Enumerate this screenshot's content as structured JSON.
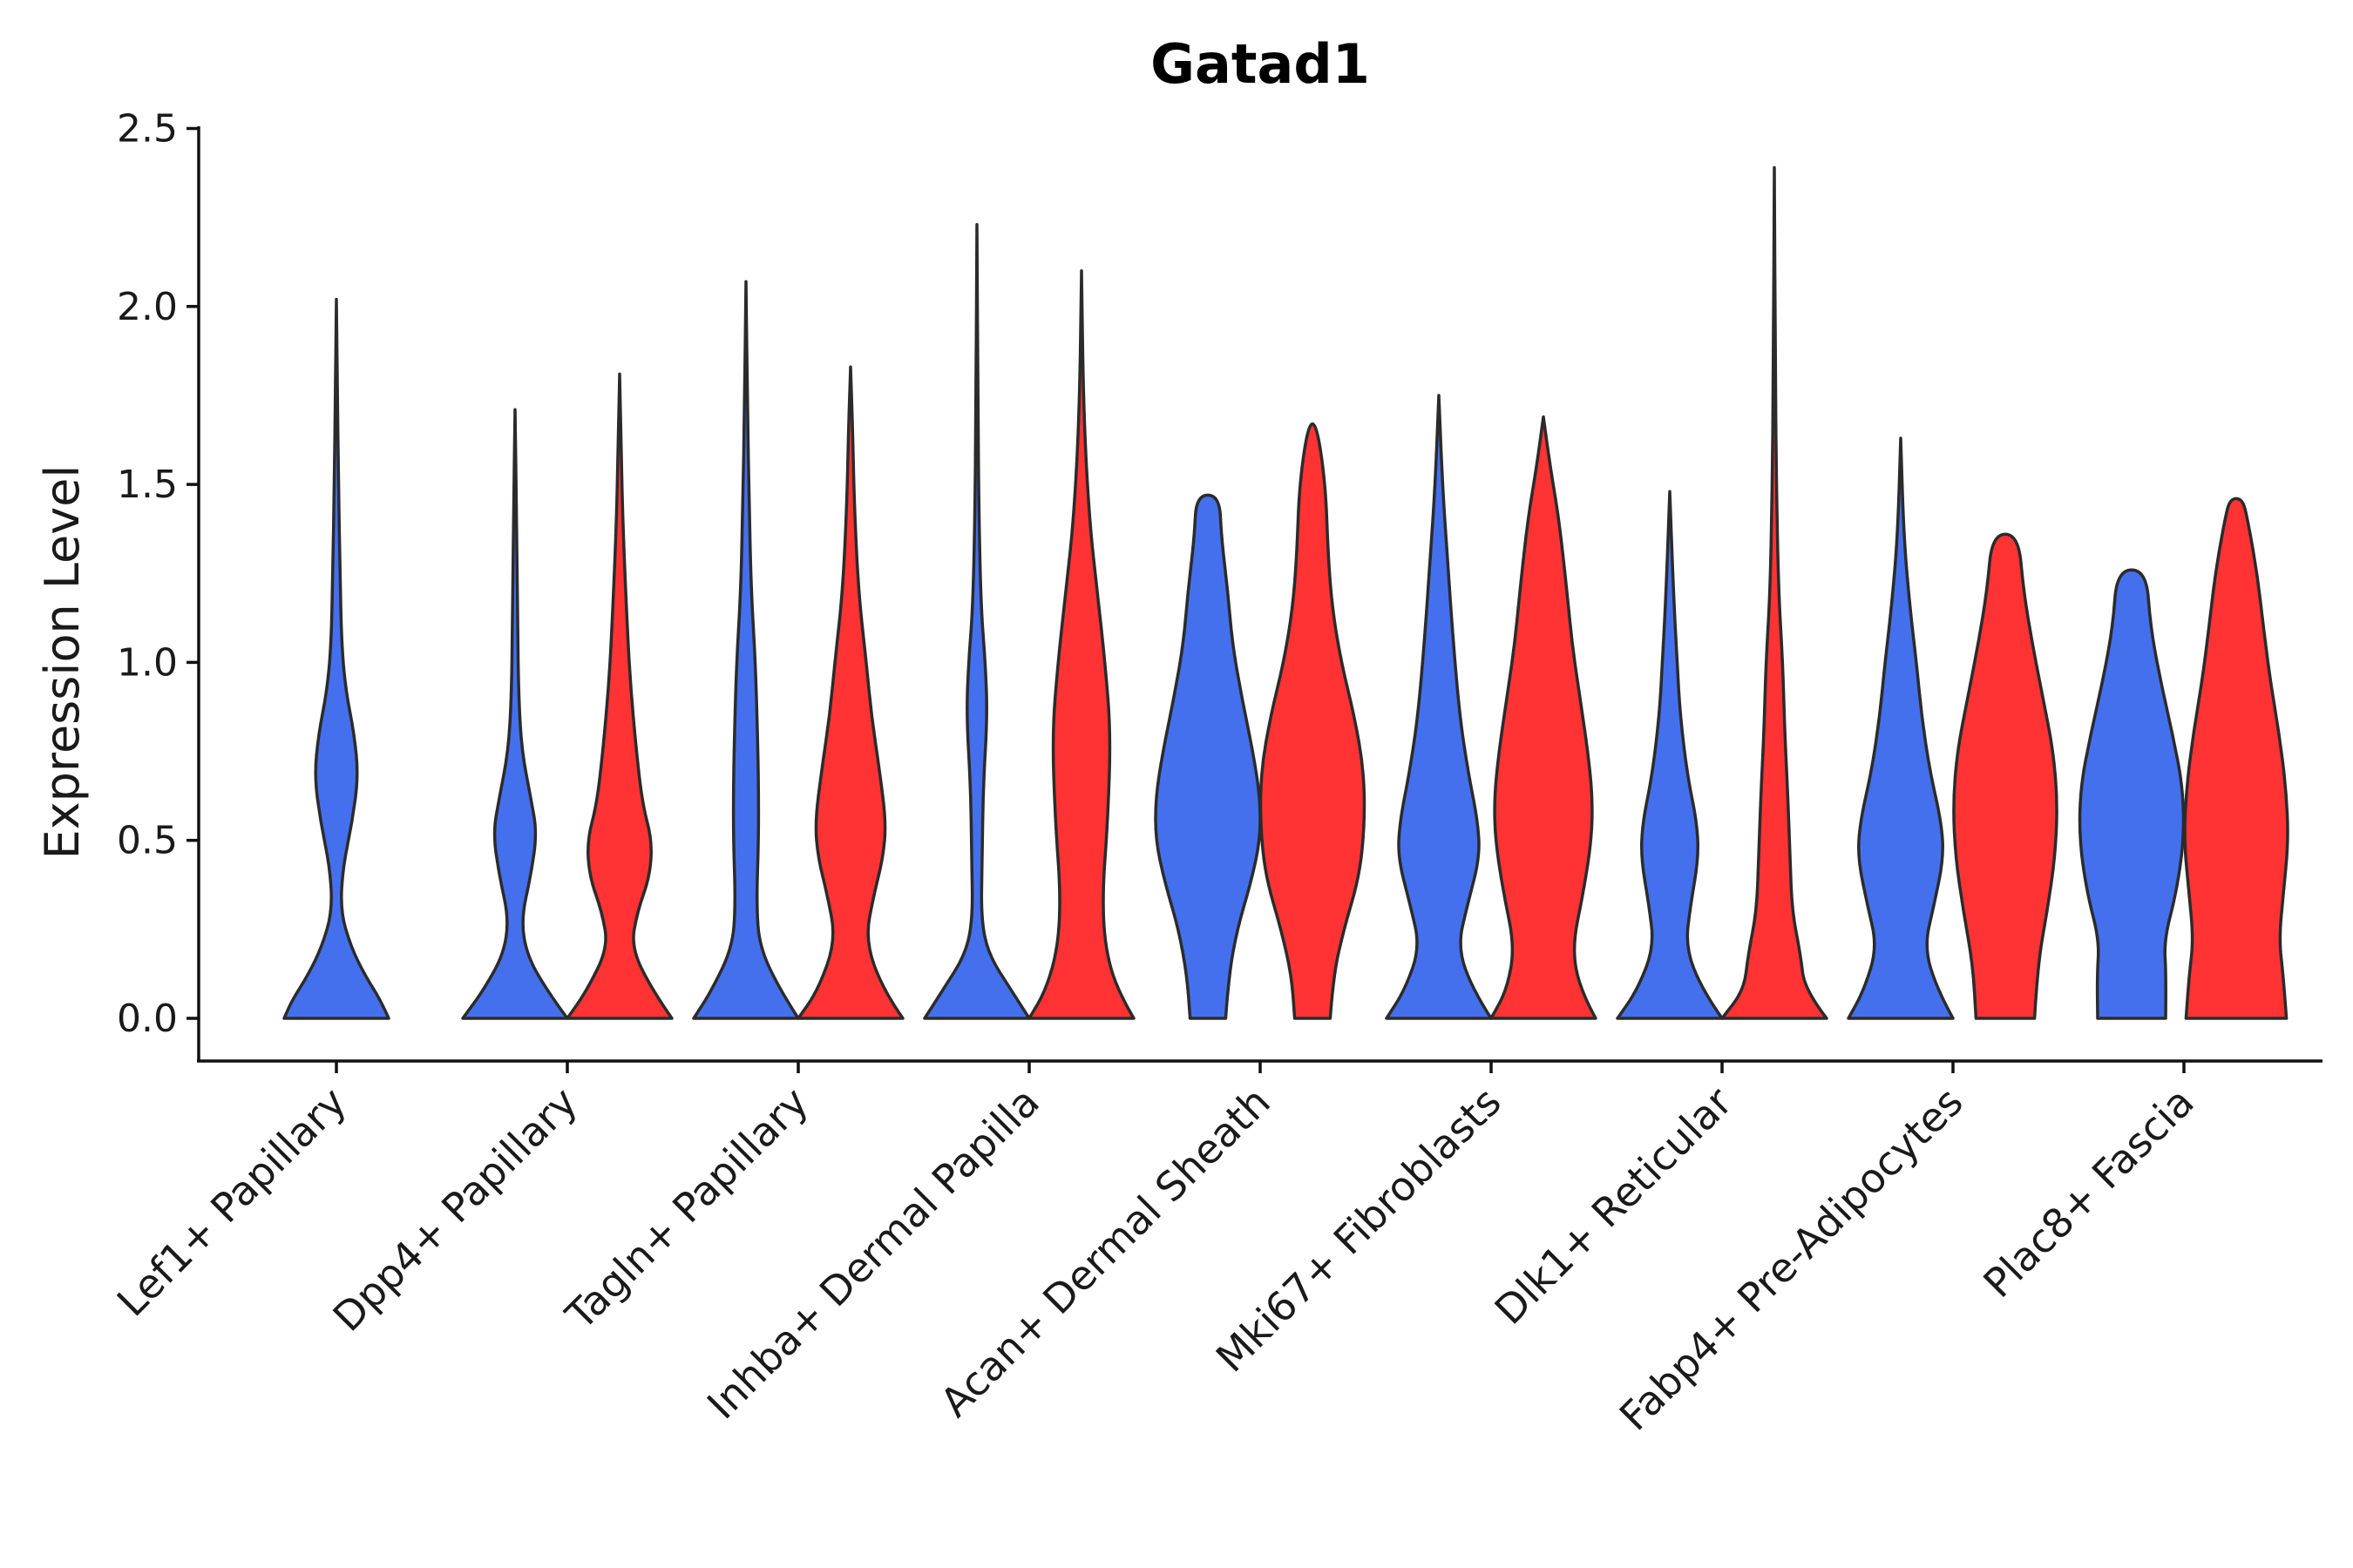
{
  "chart_data": {
    "type": "violin",
    "title": "Gatad1",
    "xlabel": "",
    "ylabel": "Expression Level",
    "ylim": [
      -0.12,
      2.52
    ],
    "yticks": [
      "0.0",
      "0.5",
      "1.0",
      "1.5",
      "2.0",
      "2.5"
    ],
    "ytick_values": [
      0,
      0.5,
      1.0,
      1.5,
      2.0,
      2.5
    ],
    "grid": false,
    "series_colors": {
      "group_1": "#4470ee",
      "group_2": "#ff3333"
    },
    "categories": [
      "Lef1+ Papillary",
      "Dpp4+ Papillary",
      "Tagln+ Papillary",
      "Inhba+ Dermal Papilla",
      "Acan+ Dermal Sheath",
      "Mki67+ Fibroblasts",
      "Dlk1+ Reticular",
      "Fabp4+ Pre-Adipocytes",
      "Plac8+ Fascia"
    ],
    "violins": [
      {
        "category": "Lef1+ Papillary",
        "group": "group_1",
        "min": 0.0,
        "max": 2.02,
        "profile": [
          [
            0.0,
            1.0
          ],
          [
            0.05,
            0.85
          ],
          [
            0.12,
            0.55
          ],
          [
            0.2,
            0.28
          ],
          [
            0.3,
            0.08
          ],
          [
            0.42,
            0.12
          ],
          [
            0.55,
            0.3
          ],
          [
            0.68,
            0.42
          ],
          [
            0.8,
            0.34
          ],
          [
            0.92,
            0.18
          ],
          [
            1.05,
            0.1
          ],
          [
            1.25,
            0.07
          ],
          [
            1.5,
            0.04
          ],
          [
            1.75,
            0.02
          ],
          [
            2.02,
            0.0
          ]
        ]
      },
      {
        "category": "Dpp4+ Papillary",
        "group": "group_1",
        "min": 0.0,
        "max": 1.71,
        "profile": [
          [
            0.0,
            1.0
          ],
          [
            0.08,
            0.6
          ],
          [
            0.18,
            0.22
          ],
          [
            0.28,
            0.12
          ],
          [
            0.4,
            0.3
          ],
          [
            0.52,
            0.42
          ],
          [
            0.62,
            0.3
          ],
          [
            0.75,
            0.13
          ],
          [
            0.9,
            0.07
          ],
          [
            1.1,
            0.05
          ],
          [
            1.4,
            0.03
          ],
          [
            1.71,
            0.0
          ]
        ]
      },
      {
        "category": "Dpp4+ Papillary",
        "group": "group_2",
        "min": 0.0,
        "max": 1.81,
        "profile": [
          [
            0.0,
            1.0
          ],
          [
            0.08,
            0.62
          ],
          [
            0.2,
            0.22
          ],
          [
            0.3,
            0.34
          ],
          [
            0.4,
            0.58
          ],
          [
            0.5,
            0.62
          ],
          [
            0.6,
            0.44
          ],
          [
            0.75,
            0.32
          ],
          [
            0.95,
            0.2
          ],
          [
            1.15,
            0.13
          ],
          [
            1.4,
            0.06
          ],
          [
            1.6,
            0.03
          ],
          [
            1.81,
            0.0
          ]
        ]
      },
      {
        "category": "Tagln+ Papillary",
        "group": "group_1",
        "min": 0.0,
        "max": 2.07,
        "profile": [
          [
            0.0,
            1.0
          ],
          [
            0.08,
            0.65
          ],
          [
            0.2,
            0.26
          ],
          [
            0.32,
            0.2
          ],
          [
            0.5,
            0.24
          ],
          [
            0.65,
            0.24
          ],
          [
            0.8,
            0.22
          ],
          [
            1.0,
            0.18
          ],
          [
            1.2,
            0.1
          ],
          [
            1.45,
            0.06
          ],
          [
            1.7,
            0.03
          ],
          [
            2.07,
            0.0
          ]
        ]
      },
      {
        "category": "Tagln+ Papillary",
        "group": "group_2",
        "min": 0.0,
        "max": 1.83,
        "profile": [
          [
            0.0,
            1.0
          ],
          [
            0.08,
            0.62
          ],
          [
            0.22,
            0.28
          ],
          [
            0.35,
            0.45
          ],
          [
            0.45,
            0.62
          ],
          [
            0.55,
            0.68
          ],
          [
            0.7,
            0.55
          ],
          [
            0.85,
            0.4
          ],
          [
            1.0,
            0.3
          ],
          [
            1.2,
            0.15
          ],
          [
            1.45,
            0.07
          ],
          [
            1.65,
            0.04
          ],
          [
            1.83,
            0.0
          ]
        ]
      },
      {
        "category": "Inhba+ Dermal Papilla",
        "group": "group_1",
        "min": 0.0,
        "max": 2.23,
        "profile": [
          [
            0.0,
            1.0
          ],
          [
            0.08,
            0.65
          ],
          [
            0.18,
            0.22
          ],
          [
            0.28,
            0.08
          ],
          [
            0.45,
            0.1
          ],
          [
            0.65,
            0.12
          ],
          [
            0.85,
            0.2
          ],
          [
            1.0,
            0.16
          ],
          [
            1.15,
            0.08
          ],
          [
            1.4,
            0.04
          ],
          [
            1.7,
            0.02
          ],
          [
            2.23,
            0.0
          ]
        ]
      },
      {
        "category": "Inhba+ Dermal Papilla",
        "group": "group_2",
        "min": 0.0,
        "max": 2.1,
        "profile": [
          [
            0.0,
            1.0
          ],
          [
            0.08,
            0.68
          ],
          [
            0.2,
            0.45
          ],
          [
            0.35,
            0.4
          ],
          [
            0.55,
            0.5
          ],
          [
            0.8,
            0.56
          ],
          [
            1.0,
            0.45
          ],
          [
            1.2,
            0.3
          ],
          [
            1.4,
            0.15
          ],
          [
            1.7,
            0.04
          ],
          [
            2.1,
            0.0
          ]
        ]
      },
      {
        "category": "Acan+ Dermal Sheath",
        "group": "group_1",
        "min": 0.0,
        "max": 1.47,
        "profile": [
          [
            0.0,
            0.34
          ],
          [
            0.12,
            0.4
          ],
          [
            0.25,
            0.56
          ],
          [
            0.38,
            0.82
          ],
          [
            0.5,
            1.0
          ],
          [
            0.62,
            1.0
          ],
          [
            0.75,
            0.86
          ],
          [
            0.9,
            0.65
          ],
          [
            1.05,
            0.47
          ],
          [
            1.2,
            0.38
          ],
          [
            1.35,
            0.26
          ],
          [
            1.47,
            0.22
          ]
        ]
      },
      {
        "category": "Acan+ Dermal Sheath",
        "group": "group_2",
        "min": 0.0,
        "max": 1.67,
        "profile": [
          [
            0.0,
            0.34
          ],
          [
            0.12,
            0.4
          ],
          [
            0.25,
            0.6
          ],
          [
            0.4,
            0.9
          ],
          [
            0.55,
            1.0
          ],
          [
            0.7,
            0.98
          ],
          [
            0.85,
            0.8
          ],
          [
            1.0,
            0.55
          ],
          [
            1.15,
            0.38
          ],
          [
            1.3,
            0.3
          ],
          [
            1.5,
            0.25
          ],
          [
            1.67,
            0.08
          ]
        ]
      },
      {
        "category": "Mki67+ Fibroblasts",
        "group": "group_1",
        "min": 0.0,
        "max": 1.75,
        "profile": [
          [
            0.0,
            1.0
          ],
          [
            0.08,
            0.65
          ],
          [
            0.2,
            0.36
          ],
          [
            0.32,
            0.55
          ],
          [
            0.45,
            0.78
          ],
          [
            0.55,
            0.75
          ],
          [
            0.7,
            0.55
          ],
          [
            0.85,
            0.4
          ],
          [
            1.05,
            0.28
          ],
          [
            1.3,
            0.16
          ],
          [
            1.5,
            0.07
          ],
          [
            1.75,
            0.0
          ]
        ]
      },
      {
        "category": "Mki67+ Fibroblasts",
        "group": "group_2",
        "min": 0.0,
        "max": 1.69,
        "profile": [
          [
            0.0,
            1.0
          ],
          [
            0.08,
            0.7
          ],
          [
            0.2,
            0.55
          ],
          [
            0.35,
            0.76
          ],
          [
            0.5,
            0.92
          ],
          [
            0.62,
            0.94
          ],
          [
            0.75,
            0.85
          ],
          [
            0.9,
            0.7
          ],
          [
            1.05,
            0.55
          ],
          [
            1.2,
            0.45
          ],
          [
            1.4,
            0.3
          ],
          [
            1.55,
            0.13
          ],
          [
            1.69,
            0.0
          ]
        ]
      },
      {
        "category": "Dlk1+ Reticular",
        "group": "group_1",
        "min": 0.0,
        "max": 1.48,
        "profile": [
          [
            0.0,
            1.0
          ],
          [
            0.08,
            0.62
          ],
          [
            0.2,
            0.3
          ],
          [
            0.32,
            0.4
          ],
          [
            0.45,
            0.55
          ],
          [
            0.55,
            0.52
          ],
          [
            0.68,
            0.34
          ],
          [
            0.85,
            0.2
          ],
          [
            1.0,
            0.14
          ],
          [
            1.2,
            0.07
          ],
          [
            1.48,
            0.0
          ]
        ]
      },
      {
        "category": "Dlk1+ Reticular",
        "group": "group_2",
        "min": 0.0,
        "max": 2.39,
        "profile": [
          [
            0.0,
            1.0
          ],
          [
            0.08,
            0.58
          ],
          [
            0.18,
            0.5
          ],
          [
            0.3,
            0.34
          ],
          [
            0.45,
            0.3
          ],
          [
            0.62,
            0.26
          ],
          [
            0.8,
            0.2
          ],
          [
            1.0,
            0.16
          ],
          [
            1.2,
            0.08
          ],
          [
            1.5,
            0.04
          ],
          [
            1.8,
            0.02
          ],
          [
            2.39,
            0.0
          ]
        ]
      },
      {
        "category": "Fabp4+ Pre-Adipocytes",
        "group": "group_1",
        "min": 0.0,
        "max": 1.63,
        "profile": [
          [
            0.0,
            1.0
          ],
          [
            0.08,
            0.7
          ],
          [
            0.2,
            0.45
          ],
          [
            0.32,
            0.64
          ],
          [
            0.45,
            0.82
          ],
          [
            0.55,
            0.78
          ],
          [
            0.7,
            0.55
          ],
          [
            0.85,
            0.4
          ],
          [
            1.0,
            0.3
          ],
          [
            1.15,
            0.18
          ],
          [
            1.35,
            0.06
          ],
          [
            1.63,
            0.0
          ]
        ]
      },
      {
        "category": "Fabp4+ Pre-Adipocytes",
        "group": "group_2",
        "min": 0.0,
        "max": 1.36,
        "profile": [
          [
            0.0,
            0.56
          ],
          [
            0.15,
            0.62
          ],
          [
            0.3,
            0.8
          ],
          [
            0.45,
            0.95
          ],
          [
            0.6,
            1.0
          ],
          [
            0.75,
            0.92
          ],
          [
            0.9,
            0.72
          ],
          [
            1.05,
            0.52
          ],
          [
            1.2,
            0.35
          ],
          [
            1.36,
            0.25
          ]
        ]
      },
      {
        "category": "Plac8+ Fascia",
        "group": "group_1",
        "min": 0.0,
        "max": 1.26,
        "profile": [
          [
            0.0,
            0.65
          ],
          [
            0.12,
            0.66
          ],
          [
            0.22,
            0.62
          ],
          [
            0.35,
            0.85
          ],
          [
            0.5,
            1.0
          ],
          [
            0.65,
            0.98
          ],
          [
            0.8,
            0.78
          ],
          [
            0.95,
            0.55
          ],
          [
            1.1,
            0.36
          ],
          [
            1.26,
            0.28
          ]
        ]
      },
      {
        "category": "Plac8+ Fascia",
        "group": "group_2",
        "min": 0.0,
        "max": 1.46,
        "profile": [
          [
            0.0,
            0.96
          ],
          [
            0.12,
            0.9
          ],
          [
            0.22,
            0.82
          ],
          [
            0.35,
            0.9
          ],
          [
            0.5,
            1.0
          ],
          [
            0.65,
            0.95
          ],
          [
            0.8,
            0.82
          ],
          [
            0.95,
            0.65
          ],
          [
            1.1,
            0.52
          ],
          [
            1.25,
            0.4
          ],
          [
            1.4,
            0.22
          ],
          [
            1.46,
            0.12
          ]
        ]
      }
    ]
  }
}
